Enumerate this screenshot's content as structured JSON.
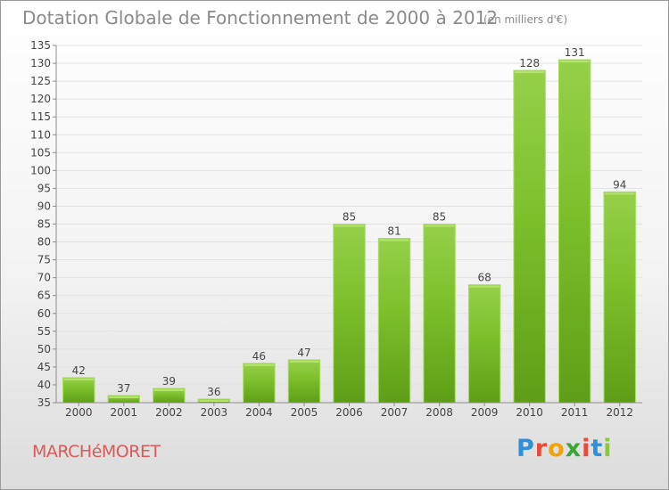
{
  "header": {
    "title": "Dotation Globale de Fonctionnement de 2000 à 2012",
    "unit": "(en milliers d'€)"
  },
  "footer": {
    "commune": "MARCHéMORET",
    "brand_letters": [
      {
        "char": "P",
        "color": "#2f8fd8"
      },
      {
        "char": "r",
        "color": "#e84b3c"
      },
      {
        "char": "o",
        "color": "#f2a20c"
      },
      {
        "char": "x",
        "color": "#3aa636"
      },
      {
        "char": "i",
        "color": "#e84b3c"
      },
      {
        "char": "t",
        "color": "#2f8fd8"
      },
      {
        "char": "i",
        "color": "#8cc63f"
      }
    ]
  },
  "chart_data": {
    "type": "bar",
    "categories": [
      "2000",
      "2001",
      "2002",
      "2003",
      "2004",
      "2005",
      "2006",
      "2007",
      "2008",
      "2009",
      "2010",
      "2011",
      "2012"
    ],
    "values": [
      42,
      37,
      39,
      36,
      46,
      47,
      85,
      81,
      85,
      68,
      128,
      131,
      94
    ],
    "ylim": [
      35,
      135
    ],
    "yticks": [
      35,
      40,
      45,
      50,
      55,
      60,
      65,
      70,
      75,
      80,
      85,
      90,
      95,
      100,
      105,
      110,
      115,
      120,
      125,
      130,
      135
    ],
    "grid": true,
    "data_labels": true,
    "bar_color": "#7cbf2b",
    "bar_color_light": "#96d04a",
    "bar_color_dark": "#5e9e17"
  }
}
